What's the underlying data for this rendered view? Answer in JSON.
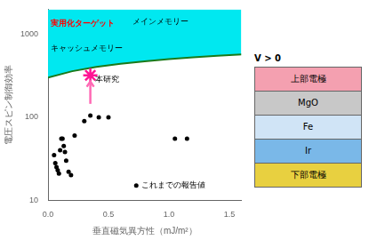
{
  "chart_data": {
    "type": "scatter",
    "log": "y",
    "grid": false,
    "xlabel": "垂直磁気異方性（mJ/m²）",
    "ylabel": "電圧スピン制御効率",
    "xlim": [
      0.0,
      1.6
    ],
    "ylim": [
      10,
      2000
    ],
    "xticks": [
      {
        "value": 0.0,
        "label": "0.0"
      },
      0.5,
      {
        "value": 1.0,
        "label": "1.0"
      },
      1.5
    ],
    "yticks": [
      10,
      100,
      1000
    ],
    "series": [
      {
        "type": "area",
        "color": "#00e8f0",
        "x": [
          0.0,
          0.2,
          0.4,
          0.6,
          0.8,
          1.0,
          1.2,
          1.4,
          1.6
        ],
        "values": [
          300,
          358.7,
          403.6,
          440.7,
          472.7,
          501.2,
          527.0,
          550.6,
          572.4
        ]
      },
      {
        "type": "line",
        "color": "#1a7a1a",
        "x": [
          0.0,
          0.2,
          0.4,
          0.6,
          0.8,
          1.0,
          1.2,
          1.4,
          1.6
        ],
        "values": [
          300,
          358.7,
          403.6,
          440.7,
          472.7,
          501.2,
          527.0,
          550.6,
          572.4
        ]
      },
      {
        "type": "scatter",
        "color": "#000000",
        "marker": "circle",
        "x": [
          0.05,
          0.06,
          0.07,
          0.08,
          0.09,
          0.1,
          0.11,
          0.12,
          0.13,
          0.14,
          0.15,
          0.17,
          0.19,
          0.22,
          0.3,
          0.35,
          0.42,
          0.5,
          1.05,
          1.15
        ],
        "values": [
          35,
          28,
          25,
          23,
          21,
          40,
          55,
          55,
          45,
          38,
          30,
          22,
          20,
          60,
          90,
          105,
          100,
          100,
          55,
          55
        ]
      },
      {
        "type": "scatter",
        "color": "#ff1493",
        "marker": "star",
        "x": [
          0.35
        ],
        "values": [
          320
        ]
      },
      {
        "type": "scatter",
        "color": "#000000",
        "marker": "circle",
        "x": [
          0.73
        ],
        "values": [
          15
        ]
      }
    ],
    "annotations": [
      {
        "text": "実用化ターゲット",
        "x": 0.02,
        "y": 1350,
        "color": "red"
      },
      {
        "text": "キャッシュメモリー",
        "x": 0.02,
        "y": 680
      },
      {
        "text": "メインメモリー",
        "x": 0.7,
        "y": 1400
      },
      {
        "text": "本研究",
        "x": 0.39,
        "y": 281.6
      },
      {
        "text": "これまでの報告値",
        "x": 0.77,
        "y": 15
      }
    ],
    "arrows": [
      {
        "x": 0.35,
        "y_start": 145,
        "y_end": 270,
        "color": "#ff69b4"
      }
    ],
    "device": {
      "label_V": "V > 0",
      "layers": [
        "上部電極",
        "MgO",
        "Fe",
        "Ir",
        "下部電極"
      ]
    }
  }
}
